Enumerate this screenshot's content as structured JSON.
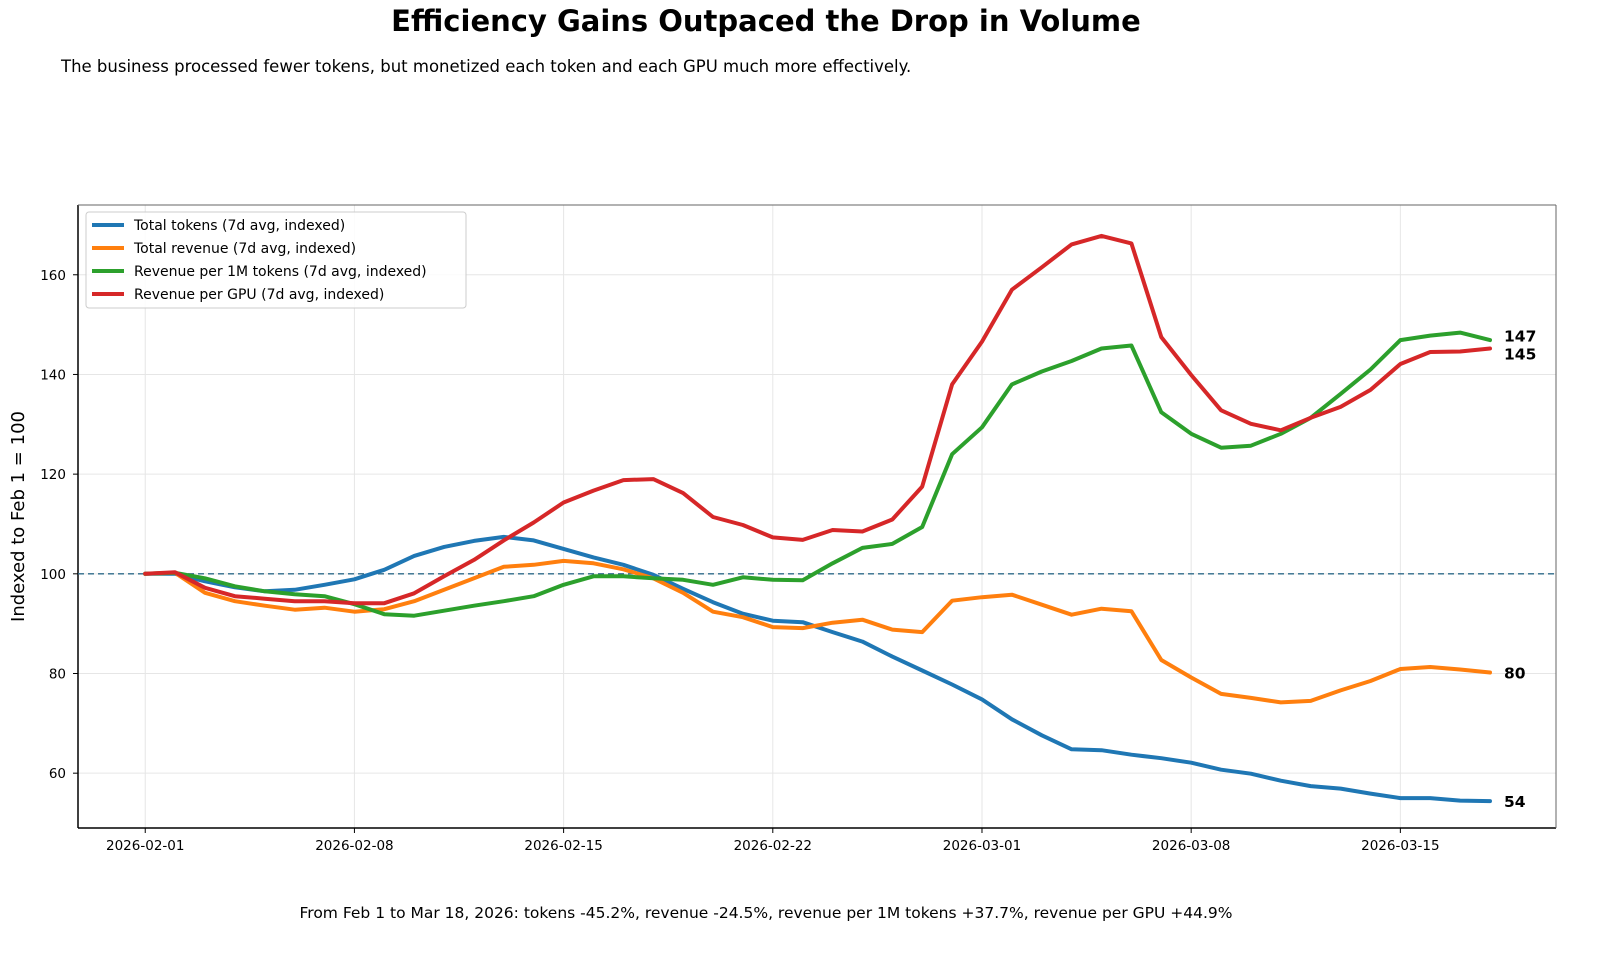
{
  "title": "Efficiency Gains Outpaced the Drop in Volume",
  "subtitle": "The business processed fewer tokens, but monetized each token and each GPU much more effectively.",
  "footer": "From Feb 1 to Mar 18, 2026: tokens -45.2%, revenue -24.5%, revenue per 1M tokens +37.7%, revenue per GPU +44.9%",
  "chart_data": {
    "type": "line",
    "title": "Efficiency Gains Outpaced the Drop in Volume",
    "xlabel": "",
    "ylabel": "Indexed to Feb 1 = 100",
    "x_start": "2026-02-01",
    "x_end": "2026-03-18",
    "x_step": "1 day",
    "xlim": [
      "2026-01-29T18:00",
      "2026-03-20T05:00"
    ],
    "ylim": [
      49,
      174
    ],
    "x_ticks": [
      "2026-02-01",
      "2026-02-08",
      "2026-02-15",
      "2026-02-22",
      "2026-03-01",
      "2026-03-08",
      "2026-03-15"
    ],
    "y_ticks": [
      60,
      80,
      100,
      120,
      140,
      160
    ],
    "grid": true,
    "reference_line": {
      "y": 100,
      "style": "dashed",
      "color": "#2f6b8a"
    },
    "legend_position": "top-left",
    "series": [
      {
        "name": "Total tokens (7d avg, indexed)",
        "color": "#1f77b4",
        "end_label": "54",
        "values": [
          100,
          100,
          98.5,
          97.3,
          96.5,
          96.8,
          97.8,
          98.9,
          100.8,
          103.6,
          105.4,
          106.6,
          107.4,
          106.7,
          105.0,
          103.3,
          101.8,
          99.8,
          97.0,
          94.3,
          92.0,
          90.6,
          90.3,
          88.3,
          86.4,
          83.4,
          80.6,
          77.8,
          74.8,
          70.8,
          67.6,
          64.8,
          64.6,
          63.7,
          63.0,
          62.1,
          60.7,
          59.9,
          58.5,
          57.4,
          56.9,
          55.9,
          55.0,
          55.0,
          54.5,
          54.4
        ]
      },
      {
        "name": "Total revenue (7d avg, indexed)",
        "color": "#ff7f0e",
        "end_label": "80",
        "values": [
          100,
          100.2,
          96.2,
          94.5,
          93.6,
          92.8,
          93.2,
          92.4,
          92.9,
          94.5,
          96.8,
          99.1,
          101.4,
          101.8,
          102.6,
          102.1,
          100.9,
          99.1,
          96.2,
          92.4,
          91.3,
          89.3,
          89.1,
          90.2,
          90.8,
          88.8,
          88.3,
          94.6,
          95.3,
          95.8,
          93.8,
          91.8,
          93.0,
          92.5,
          82.7,
          79.2,
          75.9,
          75.1,
          74.2,
          74.5,
          76.6,
          78.5,
          80.9,
          81.3,
          80.8,
          80.2
        ]
      },
      {
        "name": "Revenue per 1M tokens (7d avg, indexed)",
        "color": "#2ca02c",
        "end_label": "147",
        "values": [
          100,
          100.2,
          99.1,
          97.5,
          96.5,
          95.9,
          95.5,
          93.9,
          91.9,
          91.6,
          92.6,
          93.6,
          94.5,
          95.5,
          97.8,
          99.5,
          99.5,
          99.1,
          98.8,
          97.8,
          99.3,
          98.8,
          98.7,
          102.1,
          105.2,
          106.0,
          109.4,
          124.0,
          129.4,
          138.0,
          140.6,
          142.7,
          145.2,
          145.8,
          132.4,
          128.1,
          125.3,
          125.7,
          128.1,
          131.3,
          136.1,
          141.0,
          146.9,
          147.8,
          148.4,
          146.9
        ]
      },
      {
        "name": "Revenue per GPU (7d avg, indexed)",
        "color": "#d62728",
        "end_label": "145",
        "values": [
          100,
          100.3,
          97.2,
          95.5,
          95.0,
          94.5,
          94.5,
          94.1,
          94.1,
          96.1,
          99.5,
          102.8,
          106.7,
          110.3,
          114.3,
          116.7,
          118.8,
          119.0,
          116.2,
          111.4,
          109.8,
          107.3,
          106.8,
          108.8,
          108.5,
          110.9,
          117.5,
          138.0,
          146.6,
          157.0,
          161.5,
          166.1,
          167.8,
          166.3,
          147.5,
          139.9,
          132.8,
          130.1,
          128.8,
          131.3,
          133.5,
          136.9,
          142.1,
          144.5,
          144.6,
          145.2
        ]
      }
    ]
  }
}
